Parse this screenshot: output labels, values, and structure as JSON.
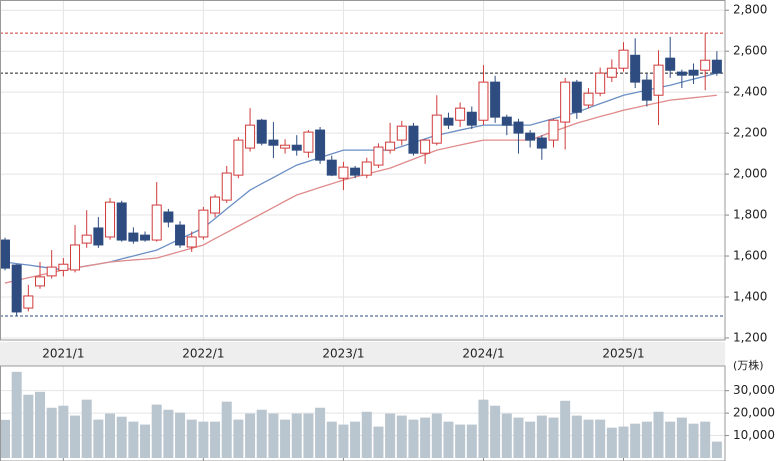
{
  "chart_data": [
    {
      "type": "candlestick",
      "categories": [
        null,
        null,
        null,
        null,
        null,
        "2021/1",
        null,
        null,
        null,
        null,
        null,
        null,
        null,
        null,
        null,
        null,
        null,
        "2022/1",
        null,
        null,
        null,
        null,
        null,
        null,
        null,
        null,
        null,
        null,
        null,
        "2023/1",
        null,
        null,
        null,
        null,
        null,
        null,
        null,
        null,
        null,
        null,
        null,
        "2024/1",
        null,
        null,
        null,
        null,
        null,
        null,
        null,
        null,
        null,
        null,
        null,
        "2025/1",
        null,
        null,
        null,
        null,
        null,
        null,
        null,
        null
      ],
      "open": [
        1678,
        1556,
        1346,
        1454,
        1503,
        1530,
        1532,
        1663,
        1737,
        1693,
        1859,
        1712,
        1702,
        1678,
        1815,
        1751,
        1644,
        1693,
        1810,
        1873,
        1995,
        2127,
        2263,
        2166,
        2127,
        2141,
        2107,
        2215,
        2068,
        1980,
        2029,
        1995,
        2044,
        2117,
        2166,
        2234,
        2102,
        2151,
        2273,
        2263,
        2302,
        2263,
        2449,
        2278,
        2254,
        2200,
        2176,
        2166,
        2254,
        2449,
        2337,
        2395,
        2473,
        2517,
        2580,
        2459,
        2385,
        2566,
        2498,
        2507,
        2507,
        2556
      ],
      "high": [
        1690,
        1560,
        1459,
        1571,
        1629,
        1590,
        1751,
        1824,
        1790,
        1883,
        1870,
        1740,
        1720,
        1961,
        1830,
        1770,
        1720,
        1840,
        1900,
        2040,
        2180,
        2322,
        2270,
        2254,
        2170,
        2190,
        2215,
        2230,
        2090,
        2060,
        2040,
        2080,
        2150,
        2250,
        2260,
        2250,
        2170,
        2385,
        2300,
        2350,
        2330,
        2532,
        2480,
        2290,
        2270,
        2215,
        2190,
        2270,
        2470,
        2460,
        2420,
        2520,
        2560,
        2644,
        2663,
        2490,
        2605,
        2670,
        2510,
        2540,
        2688,
        2600
      ],
      "low": [
        1530,
        1307,
        1330,
        1440,
        1490,
        1500,
        1520,
        1640,
        1640,
        1680,
        1670,
        1660,
        1670,
        1670,
        1740,
        1640,
        1620,
        1680,
        1790,
        1860,
        1980,
        2110,
        2140,
        2078,
        2100,
        2090,
        2080,
        2050,
        1990,
        1922,
        1980,
        1980,
        2030,
        2100,
        2140,
        2090,
        2050,
        2140,
        2220,
        2230,
        2220,
        2240,
        2250,
        2190,
        2100,
        2130,
        2070,
        2130,
        2120,
        2270,
        2320,
        2380,
        2450,
        2500,
        2420,
        2330,
        2239,
        2470,
        2420,
        2440,
        2410,
        2480
      ],
      "close": [
        1541,
        1327,
        1405,
        1498,
        1546,
        1560,
        1654,
        1702,
        1654,
        1863,
        1678,
        1673,
        1678,
        1849,
        1766,
        1654,
        1693,
        1824,
        1888,
        2005,
        2166,
        2239,
        2151,
        2141,
        2141,
        2117,
        2205,
        2068,
        1995,
        2034,
        1995,
        2059,
        2132,
        2156,
        2234,
        2102,
        2166,
        2288,
        2239,
        2322,
        2239,
        2449,
        2278,
        2239,
        2200,
        2166,
        2127,
        2263,
        2449,
        2302,
        2395,
        2493,
        2517,
        2605,
        2449,
        2361,
        2532,
        2507,
        2483,
        2483,
        2556,
        2493
      ],
      "up_color": "#d03a3a",
      "down_color": "#2e4c80",
      "lines": [
        {
          "color": "#6b8fc4",
          "values": [
            1571,
            1563,
            1556,
            1548,
            1540,
            1532,
            1542,
            1552,
            1561,
            1571,
            1586,
            1600,
            1615,
            1629,
            1656,
            1683,
            1710,
            1737,
            1783,
            1830,
            1876,
            1922,
            1953,
            1983,
            2014,
            2044,
            2062,
            2081,
            2099,
            2117,
            2117,
            2117,
            2117,
            2117,
            2135,
            2154,
            2172,
            2190,
            2202,
            2215,
            2227,
            2239,
            2239,
            2239,
            2239,
            2239,
            2255,
            2271,
            2286,
            2302,
            2323,
            2344,
            2364,
            2385,
            2397,
            2410,
            2422,
            2434,
            2449,
            2464,
            2478,
            2493
          ]
        },
        {
          "color": "#e08c8c",
          "values": [
            1468,
            1481,
            1494,
            1507,
            1519,
            1532,
            1542,
            1551,
            1561,
            1571,
            1576,
            1581,
            1585,
            1590,
            1606,
            1622,
            1638,
            1654,
            1685,
            1715,
            1746,
            1776,
            1807,
            1837,
            1868,
            1898,
            1916,
            1935,
            1953,
            1971,
            1986,
            2000,
            2015,
            2029,
            2051,
            2073,
            2095,
            2117,
            2129,
            2142,
            2154,
            2166,
            2166,
            2166,
            2166,
            2166,
            2187,
            2208,
            2228,
            2249,
            2265,
            2281,
            2296,
            2312,
            2324,
            2337,
            2349,
            2361,
            2367,
            2373,
            2379,
            2385
          ]
        }
      ],
      "hlines": [
        {
          "value": 2688,
          "color": "#d03a3a"
        },
        {
          "value": 2493,
          "color": "#222222"
        },
        {
          "value": 1307,
          "color": "#2e4c80"
        }
      ],
      "ylim": [
        1190,
        2850
      ],
      "yticks": [
        {
          "value": 1200,
          "label": "1,200"
        },
        {
          "value": 1400,
          "label": "1,400"
        },
        {
          "value": 1600,
          "label": "1,600"
        },
        {
          "value": 1800,
          "label": "1,800"
        },
        {
          "value": 2000,
          "label": "2,000"
        },
        {
          "value": 2200,
          "label": "2,200"
        },
        {
          "value": 2400,
          "label": "2,400"
        },
        {
          "value": 2600,
          "label": "2,600"
        },
        {
          "value": 2800,
          "label": "2,800"
        }
      ],
      "grid": true
    },
    {
      "type": "bar",
      "unit_label": "(万株)",
      "color": "#b9c5cf",
      "values": [
        17000,
        38400,
        28200,
        29500,
        22400,
        23300,
        18900,
        26000,
        17100,
        19800,
        18400,
        16200,
        14900,
        23800,
        21500,
        20200,
        17100,
        16200,
        16200,
        25100,
        17100,
        19800,
        21500,
        19800,
        17100,
        19800,
        19800,
        22400,
        16200,
        14900,
        16200,
        20600,
        14000,
        19800,
        18900,
        17100,
        18000,
        19800,
        16200,
        14900,
        14900,
        26000,
        23300,
        19800,
        18000,
        16200,
        18900,
        18000,
        25500,
        18900,
        17100,
        17100,
        13500,
        14000,
        15300,
        16200,
        20600,
        16200,
        18000,
        15300,
        16200,
        7300
      ],
      "ylim": [
        0,
        41000
      ],
      "yticks": [
        {
          "value": 10000,
          "label": "10,000"
        },
        {
          "value": 20000,
          "label": "20,000"
        },
        {
          "value": 30000,
          "label": "30,000"
        }
      ],
      "grid": true
    }
  ]
}
